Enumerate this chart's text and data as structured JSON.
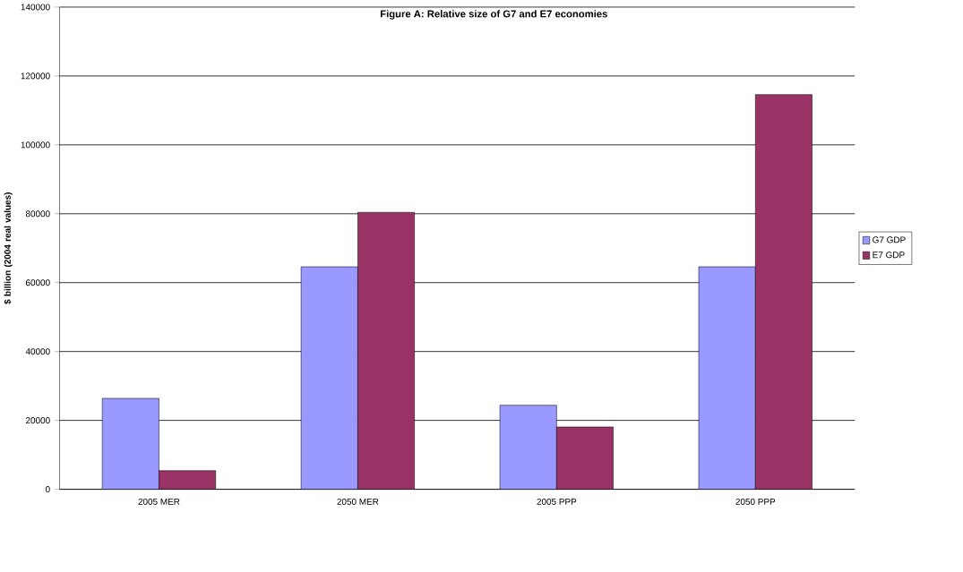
{
  "chart_data": {
    "type": "bar",
    "title": "Figure A: Relative size of G7 and E7 economies",
    "ylabel": "$ billion (2004 real values)",
    "categories": [
      "2005 MER",
      "2050 MER",
      "2005 PPP",
      "2050 PPP"
    ],
    "series": [
      {
        "name": "G7 GDP",
        "color": "#9999ff",
        "values": [
          26400,
          64600,
          24400,
          64600
        ]
      },
      {
        "name": "E7 GDP",
        "color": "#993366",
        "values": [
          5400,
          80400,
          18100,
          114600
        ]
      }
    ],
    "ylim": [
      0,
      140000
    ],
    "yticks": [
      0,
      20000,
      40000,
      60000,
      80000,
      100000,
      120000,
      140000
    ],
    "grid": "y",
    "legend": "right"
  }
}
